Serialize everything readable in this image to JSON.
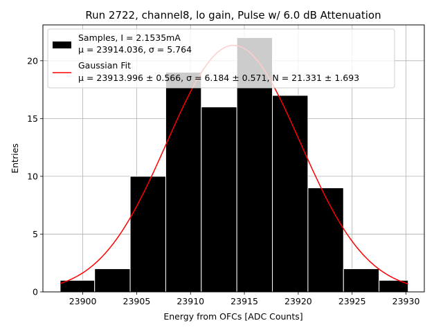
{
  "chart_data": {
    "type": "bar",
    "title": "Run 2722, channel8, lo gain, Pulse w/ 6.0 dB Attenuation",
    "xlabel": "Energy from OFCs [ADC Counts]",
    "ylabel": "Entries",
    "xlim": [
      23896.3,
      23931.7
    ],
    "ylim": [
      0,
      23.1
    ],
    "xticks": [
      23900,
      23905,
      23910,
      23915,
      23920,
      23925,
      23930
    ],
    "yticks": [
      0,
      5,
      10,
      15,
      20
    ],
    "grid": true,
    "legend_position": "top-left",
    "histogram": {
      "name": "Samples, I = 2.1535mA",
      "stats_line": "μ = 23914.036, σ = 5.764",
      "color": "#000000",
      "bins": [
        {
          "x0": 23897.9,
          "x1": 23901.1,
          "count": 1
        },
        {
          "x0": 23901.1,
          "x1": 23904.4,
          "count": 2
        },
        {
          "x0": 23904.4,
          "x1": 23907.7,
          "count": 10
        },
        {
          "x0": 23907.7,
          "x1": 23911.0,
          "count": 19
        },
        {
          "x0": 23911.0,
          "x1": 23914.3,
          "count": 16
        },
        {
          "x0": 23914.3,
          "x1": 23917.6,
          "count": 22
        },
        {
          "x0": 23917.6,
          "x1": 23920.9,
          "count": 17
        },
        {
          "x0": 23920.9,
          "x1": 23924.2,
          "count": 9
        },
        {
          "x0": 23924.2,
          "x1": 23927.5,
          "count": 2
        },
        {
          "x0": 23927.5,
          "x1": 23930.2,
          "count": 1
        }
      ]
    },
    "fit": {
      "name": "Gaussian Fit",
      "stats_line": "μ = 23913.996 ± 0.566, σ = 6.184 ± 0.571, N = 21.331 ± 1.693",
      "color": "#ff0000",
      "mu": 23913.996,
      "sigma": 6.184,
      "N": 21.331,
      "x_range": [
        23897.9,
        23930.2
      ]
    }
  }
}
